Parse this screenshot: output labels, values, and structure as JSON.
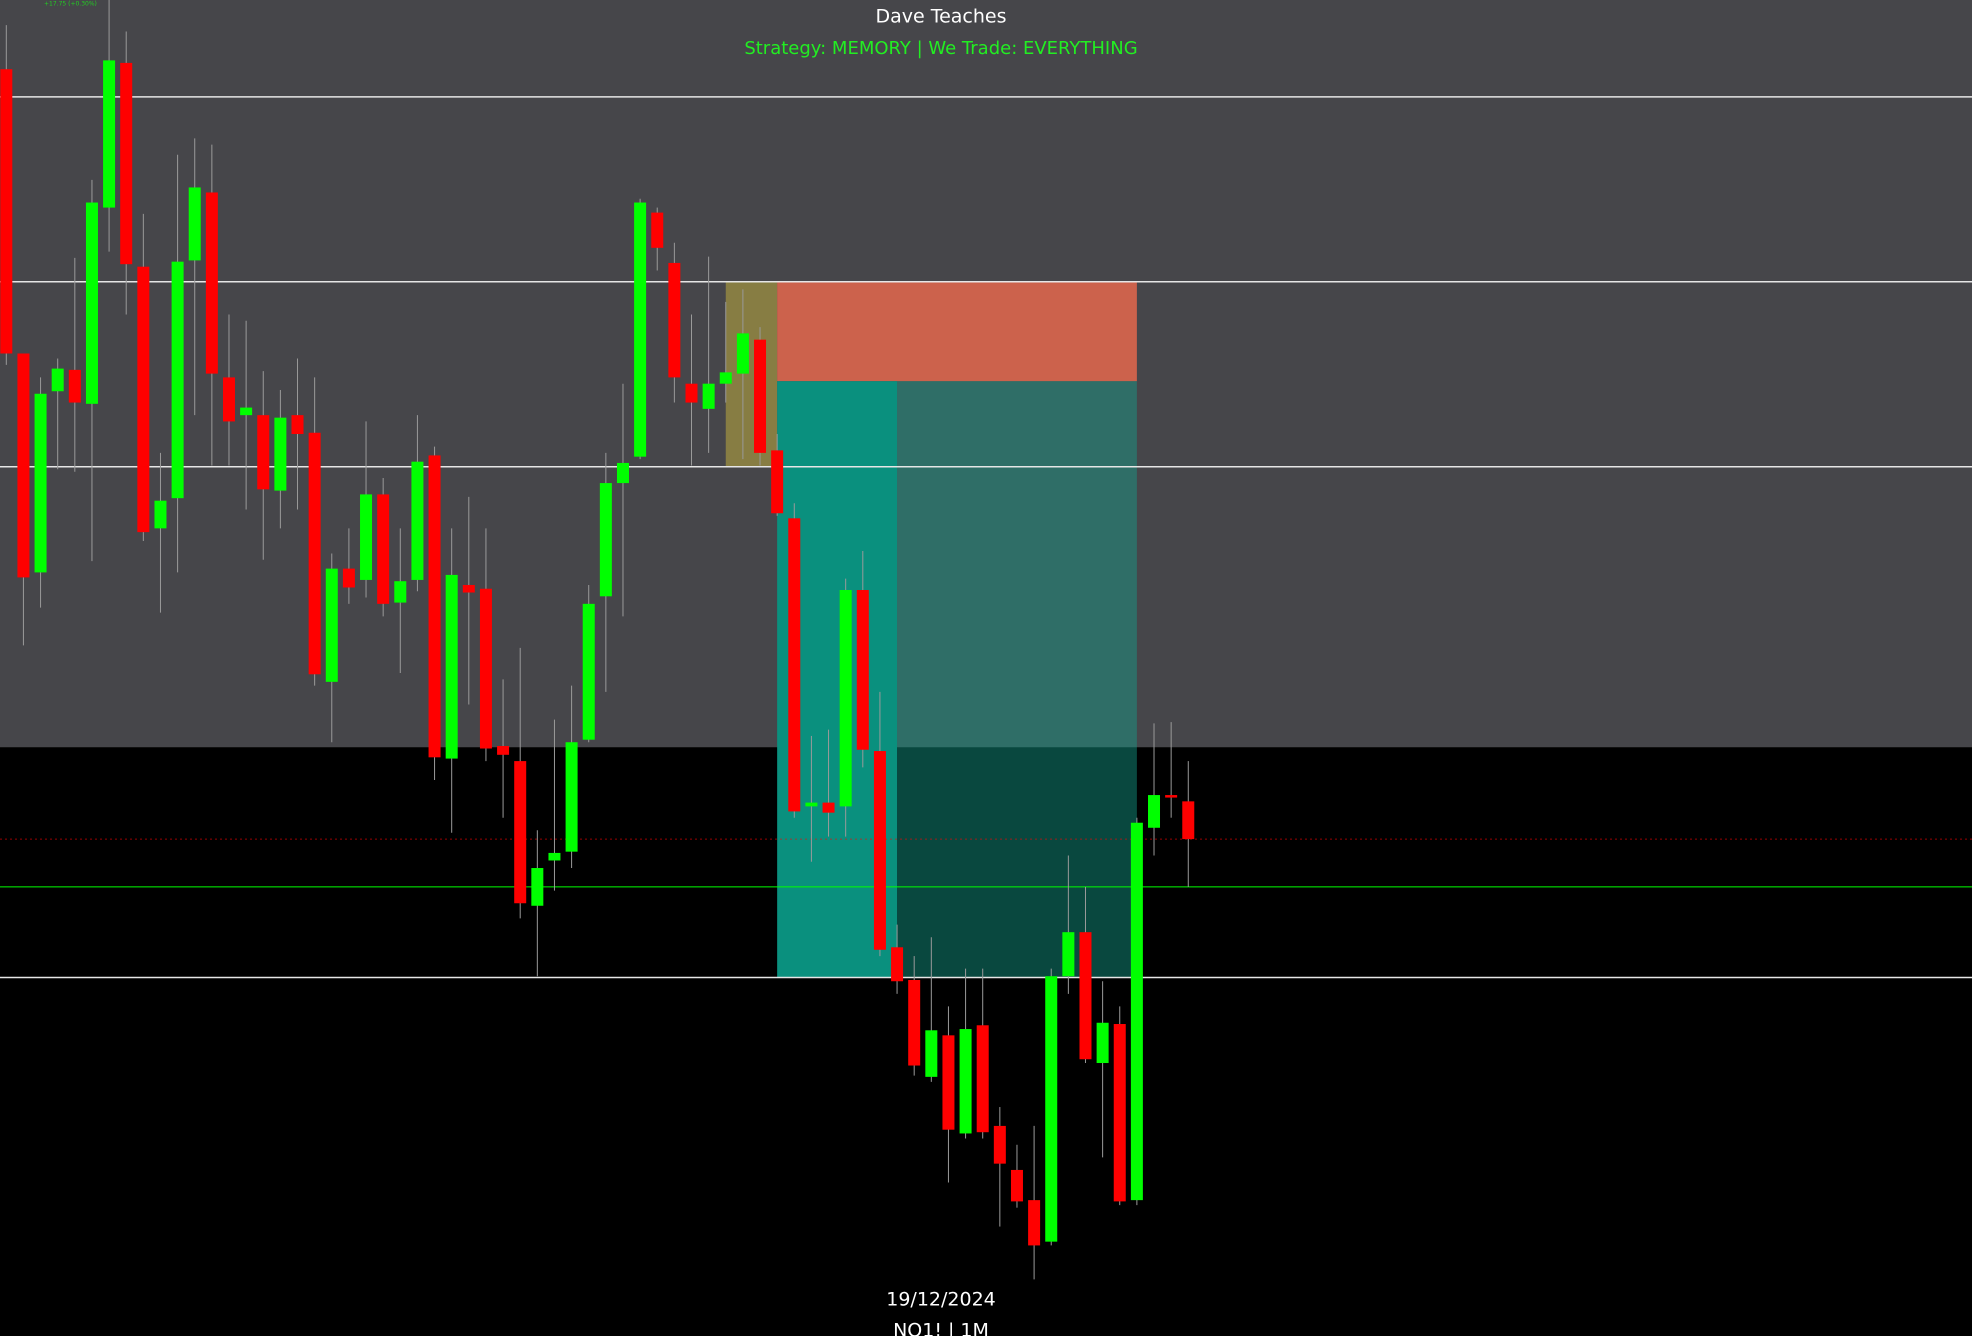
{
  "chart_data": {
    "type": "candlestick",
    "title": "Dave Teaches",
    "subtitle": "Strategy: MEMORY  | We Trade: EVERYTHING",
    "date_label": "19/12/2024",
    "symbol_label": "NQ1! | 1M",
    "change_label": "+17.75 (+0.30%)",
    "ylim": [
      0,
      1062
    ],
    "up_color": "#00ff00",
    "down_color": "#ff0000",
    "wick_color": "#9a9a9a",
    "shade_from": 468,
    "shade_color": "#46464a",
    "levels": [
      985,
      838,
      691,
      285
    ],
    "level_color": "#e6e6e6",
    "green_level": 357,
    "red_level": 395,
    "zones": [
      {
        "from": 42,
        "to": 45,
        "low": 691,
        "high": 838,
        "color": "rgba(200,180,60,0.5)"
      },
      {
        "from": 45,
        "to": 66,
        "low": 759,
        "high": 838,
        "color": "#cc624c"
      },
      {
        "from": 45,
        "to": 52,
        "low": 285,
        "high": 759,
        "color": "#0a907e"
      },
      {
        "from": 52,
        "to": 66,
        "low": 285,
        "high": 759,
        "color": "rgba(20,160,140,0.45)"
      }
    ],
    "open": [
      1007,
      781,
      607,
      751,
      768,
      741,
      897,
      1012,
      850,
      642,
      666,
      855,
      909,
      762,
      732,
      732,
      672,
      732,
      718,
      520,
      610,
      601,
      669,
      583,
      601,
      700,
      459,
      597,
      594,
      469,
      457,
      342,
      378,
      385,
      474,
      588,
      678,
      699,
      893,
      853,
      757,
      737,
      757,
      765,
      792,
      704,
      650,
      421,
      424,
      421,
      593,
      465,
      309,
      283,
      206,
      239,
      161,
      247,
      167,
      132,
      108,
      75,
      286,
      321,
      217,
      248,
      108,
      404,
      430,
      425
    ],
    "high": [
      1042,
      781,
      762,
      777,
      857,
      919,
      1062,
      1037,
      892,
      702,
      939,
      952,
      947,
      812,
      807,
      767,
      752,
      777,
      762,
      622,
      642,
      727,
      682,
      642,
      732,
      707,
      642,
      667,
      642,
      522,
      547,
      402,
      490,
      517,
      597,
      702,
      757,
      904,
      897,
      869,
      812,
      858,
      822,
      832,
      802,
      717,
      662,
      477,
      482,
      602,
      624,
      512,
      327,
      302,
      317,
      262,
      292,
      292,
      182,
      152,
      167,
      292,
      382,
      357,
      282,
      262,
      412,
      487,
      488,
      457
    ],
    "low": [
      772,
      549,
      579,
      689,
      687,
      616,
      862,
      812,
      632,
      575,
      607,
      732,
      692,
      692,
      657,
      617,
      642,
      657,
      517,
      472,
      582,
      587,
      572,
      527,
      592,
      442,
      400,
      502,
      457,
      412,
      332,
      286,
      354,
      372,
      472,
      512,
      572,
      697,
      847,
      742,
      692,
      702,
      742,
      697,
      692,
      652,
      412,
      377,
      397,
      397,
      452,
      302,
      272,
      207,
      202,
      122,
      157,
      157,
      87,
      102,
      45,
      72,
      272,
      217,
      142,
      104,
      104,
      382,
      412,
      357
    ],
    "close": [
      781,
      603,
      749,
      769,
      742,
      901,
      1014,
      852,
      639,
      664,
      854,
      913,
      765,
      727,
      738,
      673,
      730,
      717,
      526,
      610,
      595,
      669,
      582,
      600,
      695,
      460,
      605,
      591,
      467,
      462,
      344,
      372,
      384,
      472,
      582,
      678,
      694,
      901,
      865,
      762,
      742,
      757,
      766,
      797,
      702,
      654,
      417,
      424,
      416,
      593,
      466,
      307,
      282,
      215,
      243,
      164,
      244,
      162,
      137,
      107,
      72,
      286,
      321,
      220,
      249,
      107,
      408,
      430,
      428,
      395
    ]
  }
}
